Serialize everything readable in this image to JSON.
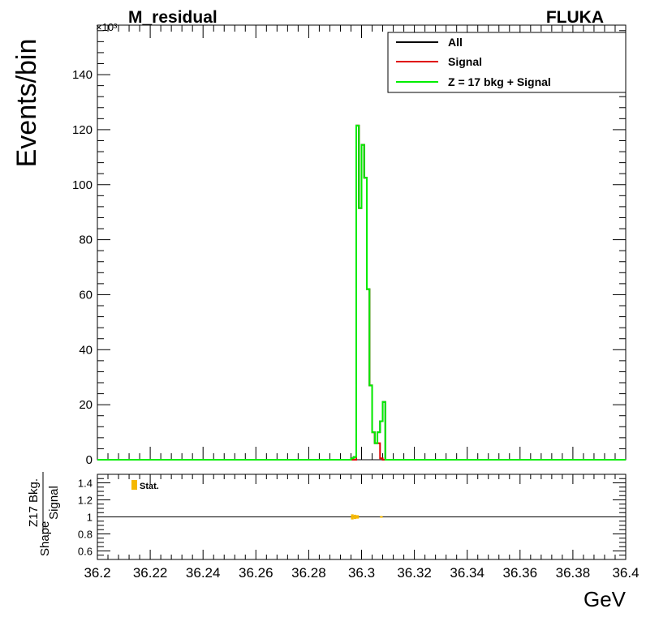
{
  "chart_data": [
    {
      "type": "line",
      "title": "M_residual",
      "label": "FLUKA",
      "xlabel": "GeV",
      "ylabel": "Events/bin",
      "y_multiplier_label": "×10³",
      "xlim": [
        36.2,
        36.4
      ],
      "ylim": [
        0,
        158
      ],
      "y_unit_scale": 1000,
      "x_ticks": [
        "36.2",
        "36.22",
        "36.24",
        "36.26",
        "36.28",
        "36.3",
        "36.32",
        "36.34",
        "36.36",
        "36.38",
        "36.4"
      ],
      "y_ticks": [
        "0",
        "20",
        "40",
        "60",
        "80",
        "100",
        "120",
        "140"
      ],
      "legend_position": "top-right",
      "series": [
        {
          "name": "All",
          "color": "#000000",
          "x": [
            36.296,
            36.297,
            36.298,
            36.299,
            36.3,
            36.301,
            36.302,
            36.303,
            36.304,
            36.305,
            36.306,
            36.307,
            36.308,
            36.309,
            36.31
          ],
          "y": [
            0.5,
            1,
            121.5,
            91.5,
            114.5,
            102.5,
            62,
            27,
            10,
            6,
            10,
            14,
            21,
            0,
            0
          ]
        },
        {
          "name": "Signal",
          "color": "#e00000",
          "x": [
            36.296,
            36.297,
            36.298,
            36.299,
            36.3,
            36.301,
            36.302,
            36.303,
            36.304,
            36.305,
            36.306,
            36.307,
            36.308,
            36.309,
            36.31
          ],
          "y": [
            0,
            0,
            121.5,
            91.5,
            114.5,
            102.5,
            62,
            27,
            10,
            6,
            6,
            0.5,
            0,
            0,
            0
          ]
        },
        {
          "name": "Z = 17 bkg + Signal",
          "color": "#00ee00",
          "x": [
            36.296,
            36.297,
            36.298,
            36.299,
            36.3,
            36.301,
            36.302,
            36.303,
            36.304,
            36.305,
            36.306,
            36.307,
            36.308,
            36.309,
            36.31
          ],
          "y": [
            0.5,
            1,
            121.5,
            91.5,
            114.5,
            102.5,
            62,
            27,
            10,
            6,
            10,
            14,
            21,
            0,
            0
          ]
        }
      ]
    },
    {
      "type": "line",
      "ylabel_lines": [
        "Shape",
        "Z17 Bkg.",
        "Signal"
      ],
      "xlim": [
        36.2,
        36.4
      ],
      "ylim": [
        0.5,
        1.5
      ],
      "y_ticks": [
        "0.6",
        "0.8",
        "1",
        "1.2",
        "1.4"
      ],
      "reference_line": 1,
      "legend": [
        "Stat."
      ],
      "band_color": "#f5b800",
      "points": [
        {
          "x": 36.2965,
          "y": 1.0,
          "err": 0.03
        },
        {
          "x": 36.2975,
          "y": 1.0,
          "err": 0.025
        },
        {
          "x": 36.2985,
          "y": 1.0,
          "err": 0.02
        },
        {
          "x": 36.3075,
          "y": 1.0,
          "err": 0.01
        }
      ]
    }
  ]
}
